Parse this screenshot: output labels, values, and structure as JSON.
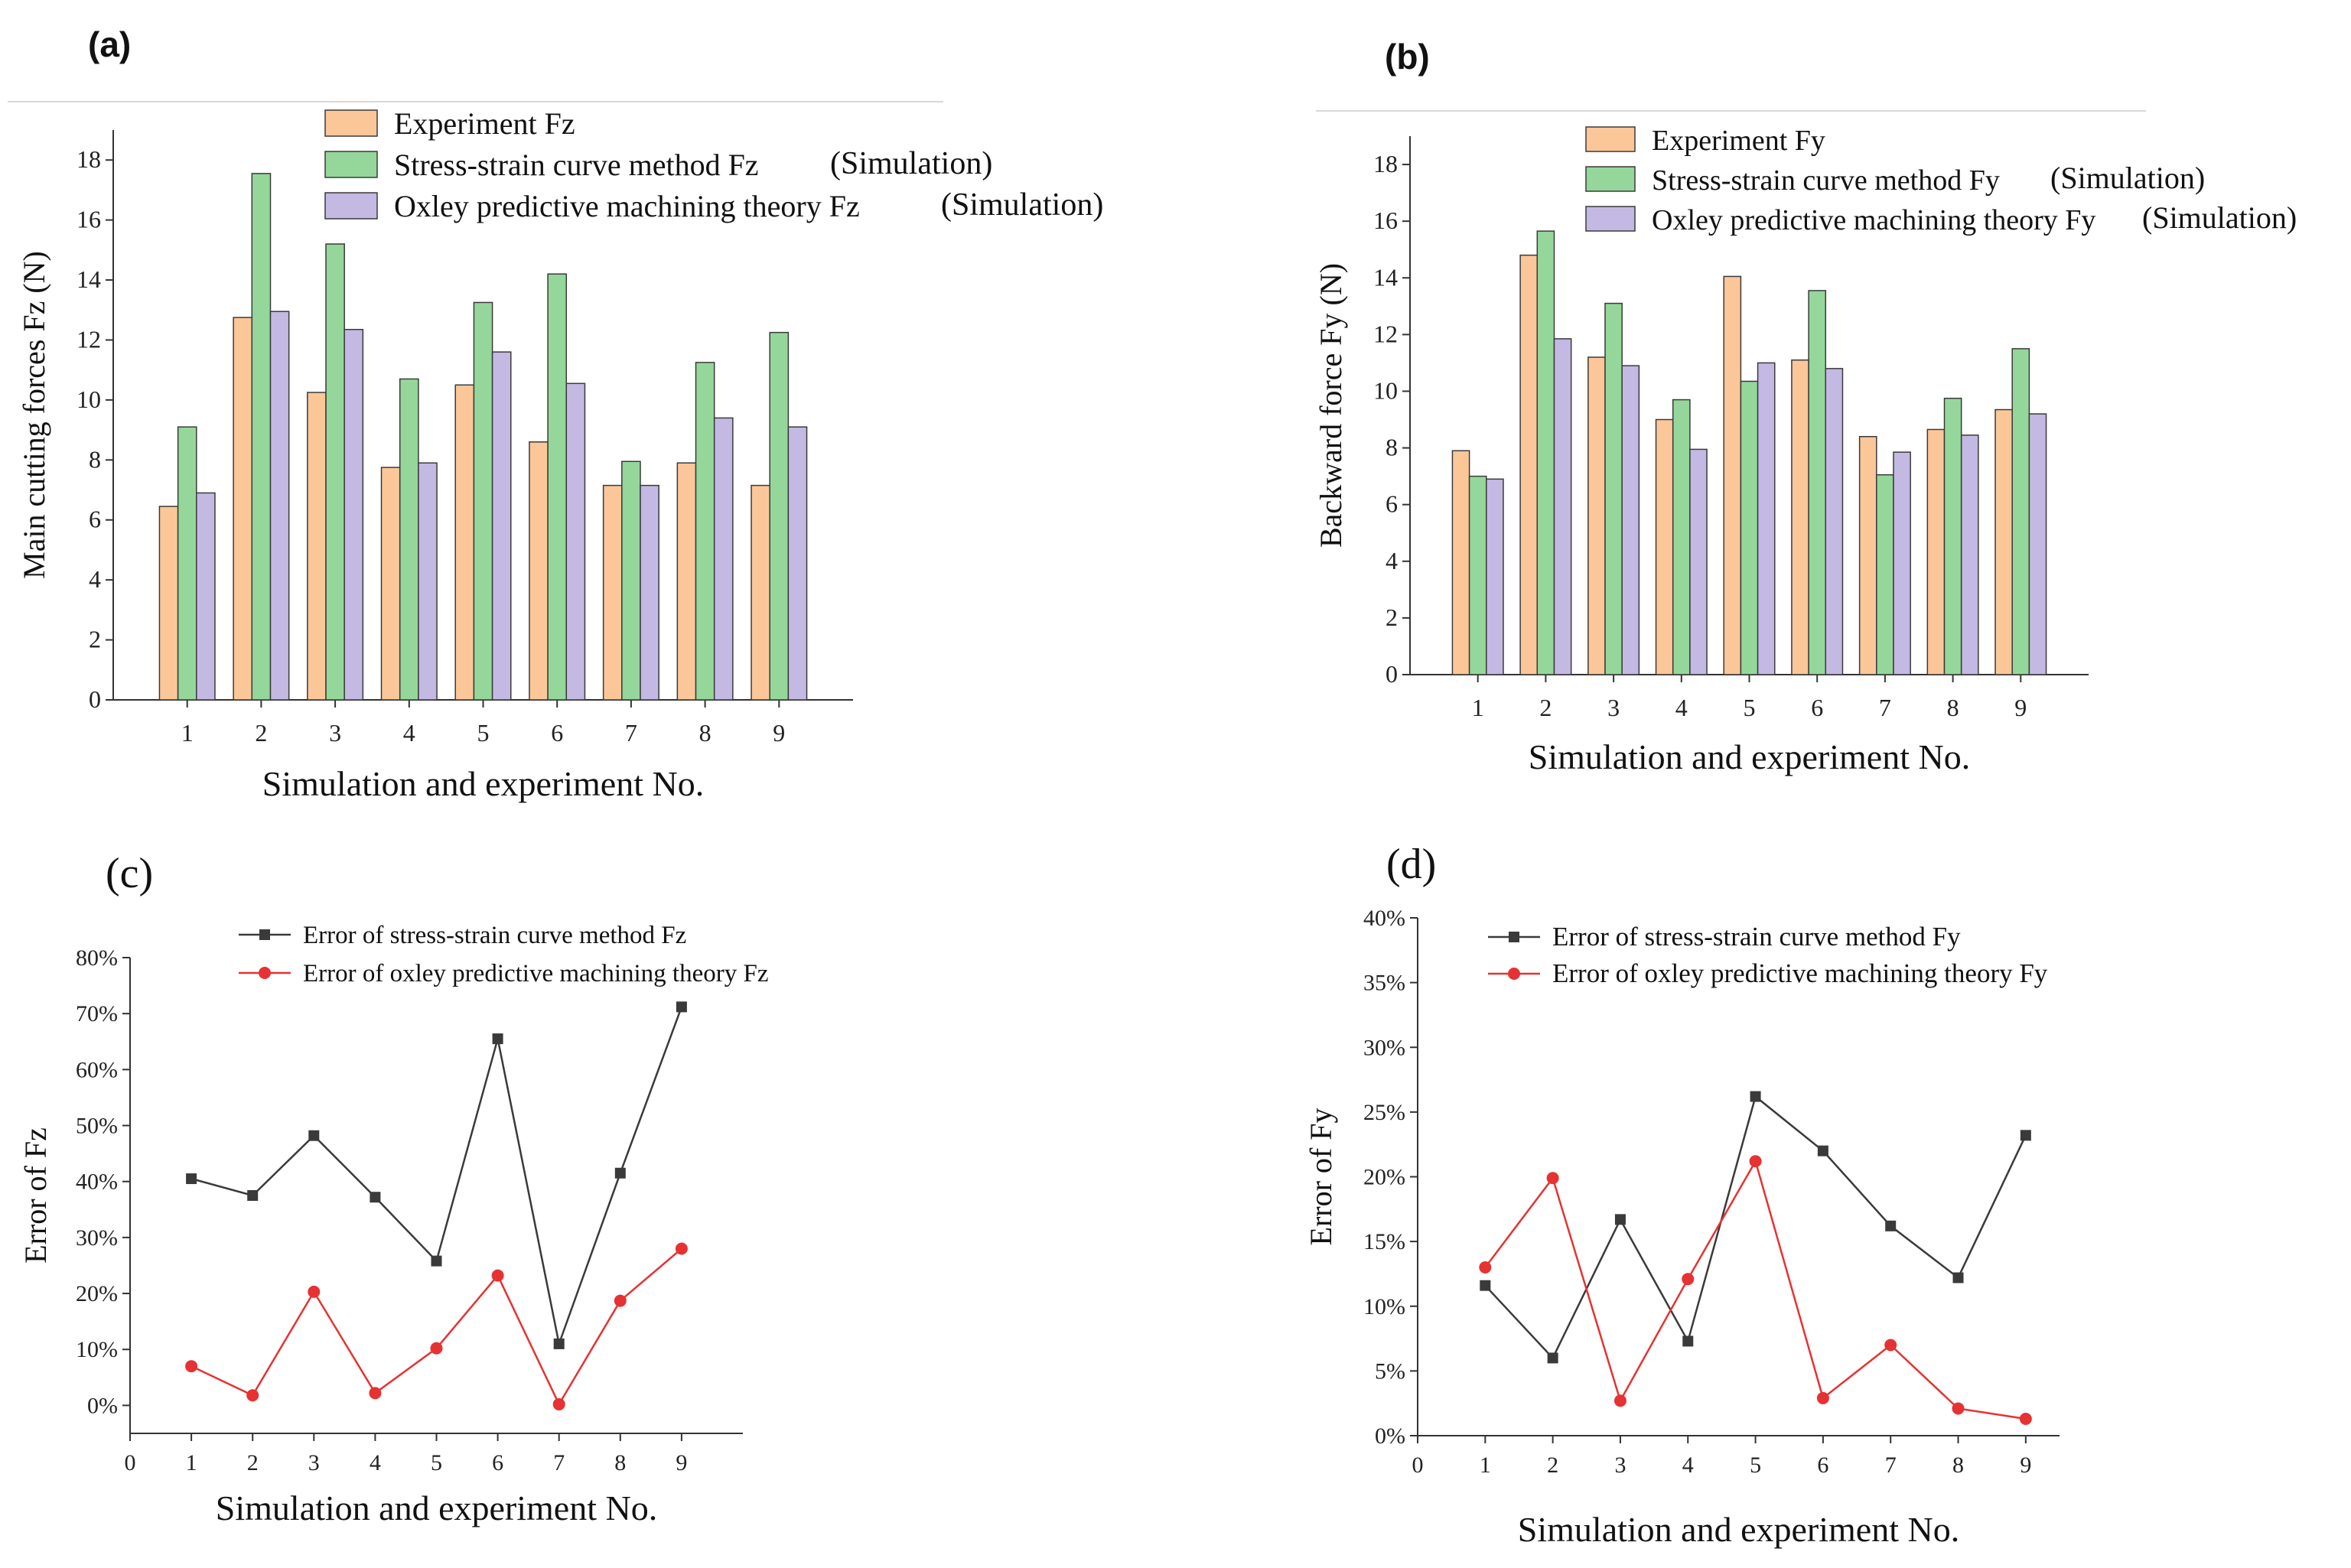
{
  "colors": {
    "experiment": "#fbc799",
    "stress_strain": "#95d79a",
    "oxley": "#c3b9e3",
    "bar_edge": "#3a3a3a",
    "line_black": "#3a3a3a",
    "line_red": "#e63232",
    "axis": "#333333",
    "divider": "#d8d8d8"
  },
  "chart_data": [
    {
      "id": "a",
      "panel_label": "(a)",
      "type": "bar",
      "title": "",
      "xlabel": "Simulation and experiment No.",
      "ylabel": "Main cutting forces Fz (N)",
      "categories": [
        "1",
        "2",
        "3",
        "4",
        "5",
        "6",
        "7",
        "8",
        "9"
      ],
      "ylim": [
        0,
        19
      ],
      "yticks": [
        0,
        2,
        4,
        6,
        8,
        10,
        12,
        14,
        16,
        18
      ],
      "ytick_labels": [
        "0",
        "2",
        "4",
        "6",
        "8",
        "10",
        "12",
        "14",
        "16",
        "18"
      ],
      "series": [
        {
          "key": "experiment",
          "name": "Experiment  Fz",
          "suffix": "",
          "values": [
            6.45,
            12.75,
            10.25,
            7.75,
            10.5,
            8.6,
            7.15,
            7.9,
            7.15
          ]
        },
        {
          "key": "stress_strain",
          "name": "Stress-strain curve method Fz",
          "suffix": "(Simulation)",
          "values": [
            9.1,
            17.55,
            15.2,
            10.7,
            13.25,
            14.2,
            7.95,
            11.25,
            12.25
          ]
        },
        {
          "key": "oxley",
          "name": "Oxley predictive machining theory  Fz",
          "suffix": "(Simulation)",
          "values": [
            6.9,
            12.95,
            12.35,
            7.9,
            11.6,
            10.55,
            7.15,
            9.4,
            9.1
          ]
        }
      ],
      "legend_position": "top-right"
    },
    {
      "id": "b",
      "panel_label": "(b)",
      "type": "bar",
      "title": "",
      "xlabel": "Simulation and experiment No.",
      "ylabel": "Backward force Fy (N)",
      "categories": [
        "1",
        "2",
        "3",
        "4",
        "5",
        "6",
        "7",
        "8",
        "9"
      ],
      "ylim": [
        0,
        19
      ],
      "yticks": [
        0,
        2,
        4,
        6,
        8,
        10,
        12,
        14,
        16,
        18
      ],
      "ytick_labels": [
        "0",
        "2",
        "4",
        "6",
        "8",
        "10",
        "12",
        "14",
        "16",
        "18"
      ],
      "series": [
        {
          "key": "experiment",
          "name": "Experiment Fy",
          "suffix": "",
          "values": [
            7.9,
            14.8,
            11.2,
            9.0,
            14.05,
            11.1,
            8.4,
            8.65,
            9.35
          ]
        },
        {
          "key": "stress_strain",
          "name": "Stress-strain curve method  Fy",
          "suffix": "(Simulation)",
          "values": [
            7.0,
            15.65,
            13.1,
            9.7,
            10.35,
            13.55,
            7.05,
            9.75,
            11.5
          ]
        },
        {
          "key": "oxley",
          "name": "Oxley predictive machining theory Fy",
          "suffix": "(Simulation)",
          "values": [
            6.9,
            11.85,
            10.9,
            7.95,
            11.0,
            10.8,
            7.85,
            8.45,
            9.2
          ]
        }
      ],
      "legend_position": "top-right"
    },
    {
      "id": "c",
      "panel_label": "(c)",
      "type": "line",
      "title": "",
      "xlabel": "Simulation and experiment No.",
      "ylabel": "Error of  Fz",
      "x": [
        1,
        2,
        3,
        4,
        5,
        6,
        7,
        8,
        9
      ],
      "xlim": [
        0,
        10
      ],
      "xticks": [
        0,
        1,
        2,
        3,
        4,
        5,
        6,
        7,
        8,
        9
      ],
      "xtick_labels": [
        "0",
        "1",
        "2",
        "3",
        "4",
        "5",
        "6",
        "7",
        "8",
        "9"
      ],
      "ylim": [
        -5,
        80
      ],
      "yticks": [
        0,
        10,
        20,
        30,
        40,
        50,
        60,
        70,
        80
      ],
      "ytick_labels": [
        "0%",
        "10%",
        "20%",
        "30%",
        "40%",
        "50%",
        "60%",
        "70%",
        "80%"
      ],
      "series": [
        {
          "key": "line_black",
          "marker": "square",
          "name": "Error of stress-strain curve method  Fz",
          "values": [
            40.5,
            37.5,
            48.2,
            37.2,
            25.8,
            65.5,
            11.0,
            41.5,
            71.2
          ]
        },
        {
          "key": "line_red",
          "marker": "circle",
          "name": "Error of oxley predictive machining theory  Fz",
          "values": [
            7.0,
            1.8,
            20.3,
            2.2,
            10.2,
            23.2,
            0.2,
            18.7,
            28.0
          ]
        }
      ],
      "legend_position": "top-center"
    },
    {
      "id": "d",
      "panel_label": "(d)",
      "type": "line",
      "title": "",
      "xlabel": "Simulation and experiment No.",
      "ylabel": "Error of  Fy",
      "x": [
        1,
        2,
        3,
        4,
        5,
        6,
        7,
        8,
        9
      ],
      "xlim": [
        0,
        9.5
      ],
      "xticks": [
        0,
        1,
        2,
        3,
        4,
        5,
        6,
        7,
        8,
        9
      ],
      "xtick_labels": [
        "0",
        "1",
        "2",
        "3",
        "4",
        "5",
        "6",
        "7",
        "8",
        "9"
      ],
      "ylim": [
        0,
        40
      ],
      "yticks": [
        0,
        5,
        10,
        15,
        20,
        25,
        30,
        35,
        40
      ],
      "ytick_labels": [
        "0%",
        "5%",
        "10%",
        "15%",
        "20%",
        "25%",
        "30%",
        "35%",
        "40%"
      ],
      "series": [
        {
          "key": "line_black",
          "marker": "square",
          "name": "Error of stress-strain curve method Fy",
          "values": [
            11.6,
            6.0,
            16.7,
            7.3,
            26.2,
            22.0,
            16.2,
            12.2,
            23.2
          ]
        },
        {
          "key": "line_red",
          "marker": "circle",
          "name": "Error of oxley predictive machining theory  Fy",
          "values": [
            13.0,
            19.9,
            2.7,
            12.1,
            21.2,
            2.9,
            7.0,
            2.1,
            1.3
          ]
        }
      ],
      "legend_position": "top-center"
    }
  ]
}
